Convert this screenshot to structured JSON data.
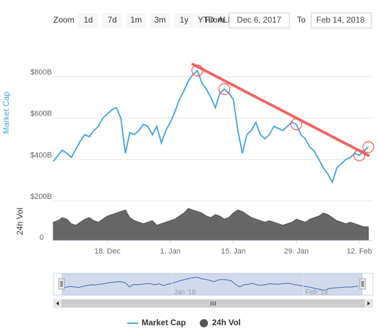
{
  "chart_data": {
    "type": "line",
    "range_selector": {
      "zoom_label": "Zoom",
      "buttons": [
        "1d",
        "7d",
        "1m",
        "3m",
        "1y",
        "YTD",
        "ALL"
      ],
      "from_label": "From",
      "from": "Dec 6, 2017",
      "to_label": "To",
      "to": "Feb 14, 2018"
    },
    "x": [
      "2017-12-06",
      "2017-12-07",
      "2017-12-08",
      "2017-12-09",
      "2017-12-10",
      "2017-12-11",
      "2017-12-12",
      "2017-12-13",
      "2017-12-14",
      "2017-12-15",
      "2017-12-16",
      "2017-12-17",
      "2017-12-18",
      "2017-12-19",
      "2017-12-20",
      "2017-12-21",
      "2017-12-22",
      "2017-12-23",
      "2017-12-24",
      "2017-12-25",
      "2017-12-26",
      "2017-12-27",
      "2017-12-28",
      "2017-12-29",
      "2017-12-30",
      "2017-12-31",
      "2018-01-01",
      "2018-01-02",
      "2018-01-03",
      "2018-01-04",
      "2018-01-05",
      "2018-01-06",
      "2018-01-07",
      "2018-01-08",
      "2018-01-09",
      "2018-01-10",
      "2018-01-11",
      "2018-01-12",
      "2018-01-13",
      "2018-01-14",
      "2018-01-15",
      "2018-01-16",
      "2018-01-17",
      "2018-01-18",
      "2018-01-19",
      "2018-01-20",
      "2018-01-21",
      "2018-01-22",
      "2018-01-23",
      "2018-01-24",
      "2018-01-25",
      "2018-01-26",
      "2018-01-27",
      "2018-01-28",
      "2018-01-29",
      "2018-01-30",
      "2018-01-31",
      "2018-02-01",
      "2018-02-02",
      "2018-02-03",
      "2018-02-04",
      "2018-02-05",
      "2018-02-06",
      "2018-02-07",
      "2018-02-08",
      "2018-02-09",
      "2018-02-10",
      "2018-02-11",
      "2018-02-12",
      "2018-02-13",
      "2018-02-14"
    ],
    "xlim": [
      "2017-12-06",
      "2018-02-15"
    ],
    "xticks": [
      {
        "value": "2017-12-18",
        "label": "18. Dec"
      },
      {
        "value": "2018-01-01",
        "label": "1. Jan"
      },
      {
        "value": "2018-01-15",
        "label": "15. Jan"
      },
      {
        "value": "2018-01-29",
        "label": "29. Jan"
      },
      {
        "value": "2018-02-12",
        "label": "12. Feb"
      }
    ],
    "series": [
      {
        "name": "Market Cap",
        "color": "#4aa8dc",
        "values": [
          390,
          420,
          445,
          430,
          410,
          450,
          490,
          520,
          510,
          540,
          560,
          600,
          620,
          640,
          650,
          600,
          430,
          530,
          520,
          540,
          570,
          560,
          520,
          560,
          480,
          540,
          580,
          630,
          690,
          730,
          780,
          810,
          830,
          770,
          740,
          700,
          650,
          720,
          740,
          720,
          690,
          540,
          430,
          520,
          540,
          580,
          520,
          500,
          520,
          560,
          550,
          540,
          560,
          580,
          570,
          520,
          500,
          460,
          440,
          400,
          360,
          330,
          290,
          360,
          380,
          400,
          410,
          430,
          420,
          440,
          460
        ]
      },
      {
        "name": "24h Vol",
        "color": "#555555",
        "axis": "y2",
        "values": [
          12,
          13,
          15,
          14,
          11,
          10,
          12,
          14,
          15,
          13,
          12,
          14,
          16,
          17,
          18,
          19,
          20,
          15,
          13,
          12,
          11,
          12,
          13,
          10,
          11,
          12,
          13,
          14,
          16,
          18,
          21,
          20,
          19,
          18,
          16,
          15,
          17,
          16,
          14,
          15,
          18,
          20,
          19,
          17,
          15,
          14,
          13,
          12,
          13,
          12,
          11,
          10,
          11,
          12,
          14,
          13,
          12,
          14,
          15,
          16,
          18,
          17,
          15,
          13,
          12,
          11,
          12,
          11,
          10,
          9,
          9
        ]
      }
    ],
    "ylabel": "Market Cap",
    "ylim": [
      200,
      880
    ],
    "yticks": [
      {
        "value": 200,
        "label": "$200B"
      },
      {
        "value": 400,
        "label": "$400B"
      },
      {
        "value": 600,
        "label": "$600B"
      },
      {
        "value": 800,
        "label": "$800B"
      }
    ],
    "y2label": "24h Vol",
    "y2lim": [
      0,
      25
    ],
    "y2ticks": [
      0
    ],
    "grid": true,
    "trendline": {
      "color": "#ee5555",
      "x": [
        "2018-01-06",
        "2018-02-14"
      ],
      "values": [
        860,
        420
      ]
    },
    "annotations": {
      "color": "#ee5555",
      "circles": [
        32,
        38,
        54,
        68,
        70
      ]
    },
    "navigator": {
      "xticks": [
        {
          "value": "2018-01-01",
          "label": "Jan '18"
        },
        {
          "value": "2018-02-01",
          "label": "Feb '18"
        }
      ]
    },
    "legend": "bottom"
  }
}
